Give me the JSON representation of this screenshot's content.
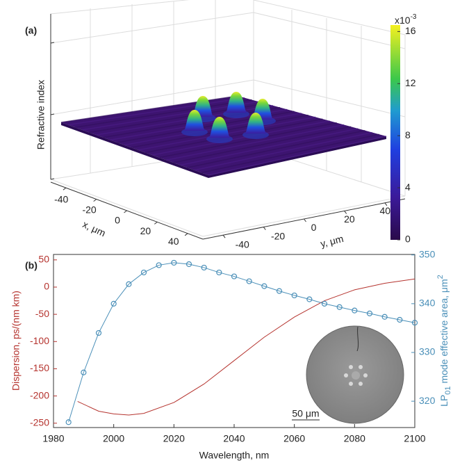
{
  "chart_data": [
    {
      "type": "surface",
      "panel_label": "(a)",
      "zlabel": "Refractive index",
      "xlabel": "x, μm",
      "ylabel": "y, μm",
      "xlim": [
        -50,
        50
      ],
      "xticks": [
        -40,
        -20,
        0,
        20,
        40
      ],
      "ylim": [
        -50,
        50
      ],
      "yticks": [
        -40,
        -20,
        0,
        20,
        40
      ],
      "colorbar": {
        "lim": [
          0,
          16.5
        ],
        "ticks": [
          0,
          4,
          8,
          12,
          16
        ],
        "scale_base": "x10",
        "scale_exponent": "-3"
      }
    },
    {
      "type": "line",
      "panel_label": "(b)",
      "xlabel": "Wavelength, nm",
      "ylabel": "Dispersion, ps/(nm km)",
      "y2label": {
        "prefix": "LP",
        "subscript": "01",
        "main": " mode effective area, μm",
        "superscript": "2"
      },
      "inset_scale": "50 μm",
      "xlim": [
        1980,
        2100
      ],
      "xticks": [
        1980,
        2000,
        2020,
        2040,
        2060,
        2080,
        2100
      ],
      "ylim": [
        -258,
        60
      ],
      "yticks": [
        -250,
        -200,
        -150,
        -100,
        -50,
        0,
        50
      ],
      "y2lim": [
        314.6,
        350.1
      ],
      "y2ticks": [
        320,
        330,
        340,
        350
      ],
      "series": [
        {
          "color": "#b5332e",
          "x": [
            1988,
            1995,
            2000,
            2005,
            2010,
            2020,
            2030,
            2040,
            2050,
            2060,
            2070,
            2080,
            2090,
            2100
          ],
          "values": [
            -210,
            -228,
            -233,
            -235,
            -232,
            -212,
            -178,
            -135,
            -92,
            -55,
            -25,
            -5,
            7,
            15
          ]
        },
        {
          "color": "#4a8fb8",
          "axis": "y2",
          "markers": true,
          "x": [
            1985,
            1990,
            1995,
            2000,
            2005,
            2010,
            2015,
            2020,
            2025,
            2030,
            2035,
            2040,
            2045,
            2050,
            2055,
            2060,
            2065,
            2070,
            2075,
            2080,
            2085,
            2090,
            2095,
            2100
          ],
          "values": [
            315.7,
            325.9,
            334.0,
            340.0,
            344.0,
            346.4,
            347.9,
            348.4,
            348.1,
            347.4,
            346.4,
            345.6,
            344.6,
            343.6,
            342.6,
            341.7,
            340.9,
            340.0,
            339.3,
            338.6,
            338.0,
            337.3,
            336.7,
            336.1
          ]
        }
      ]
    }
  ]
}
